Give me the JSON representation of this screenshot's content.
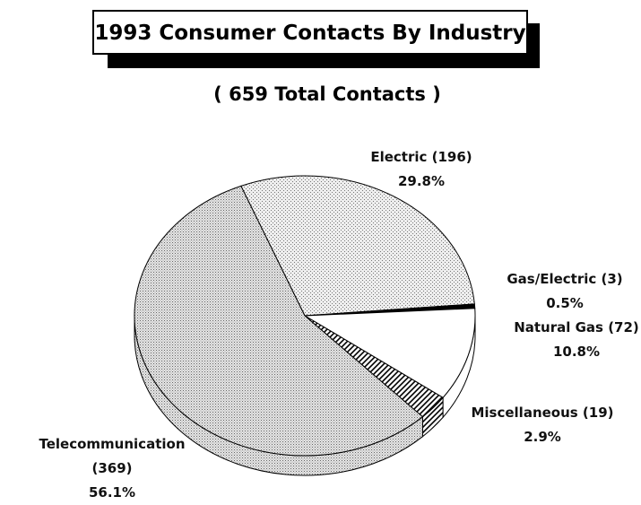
{
  "chart_data": {
    "type": "pie",
    "title": "1993 Consumer Contacts By Industry",
    "subtitle": "( 659 Total Contacts )",
    "categories": [
      "Electric (196)",
      "Gas/Electric (3)",
      "Natural Gas (72)",
      "Miscellaneous (19)",
      "Telecommunication (369)"
    ],
    "values": [
      29.8,
      0.5,
      10.8,
      2.9,
      56.1
    ],
    "value_labels": [
      "29.8%",
      "0.5%",
      "10.8%",
      "2.9%",
      "56.1%"
    ]
  }
}
